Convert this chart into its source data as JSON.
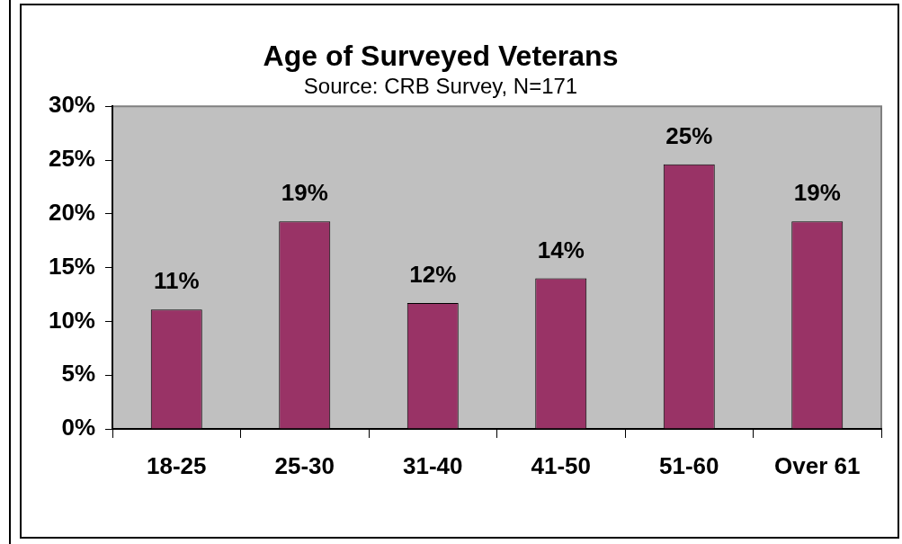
{
  "chart_data": {
    "type": "bar",
    "title": "Age of Surveyed Veterans",
    "subtitle": "Source: CRB Survey, N=171",
    "categories": [
      "18-25",
      "25-30",
      "31-40",
      "41-50",
      "51-60",
      "Over 61"
    ],
    "values": [
      11.1,
      19.3,
      11.7,
      14,
      24.6,
      19.3
    ],
    "value_labels": [
      "11%",
      "19%",
      "12%",
      "14%",
      "25%",
      "19%"
    ],
    "color": "#993366",
    "ylim": [
      0,
      30
    ],
    "yticks": [
      {
        "value": 0,
        "label": "0%"
      },
      {
        "value": 5,
        "label": "5%"
      },
      {
        "value": 10,
        "label": "10%"
      },
      {
        "value": 15,
        "label": "15%"
      },
      {
        "value": 20,
        "label": "20%"
      },
      {
        "value": 25,
        "label": "25%"
      },
      {
        "value": 30,
        "label": "30%"
      }
    ]
  }
}
